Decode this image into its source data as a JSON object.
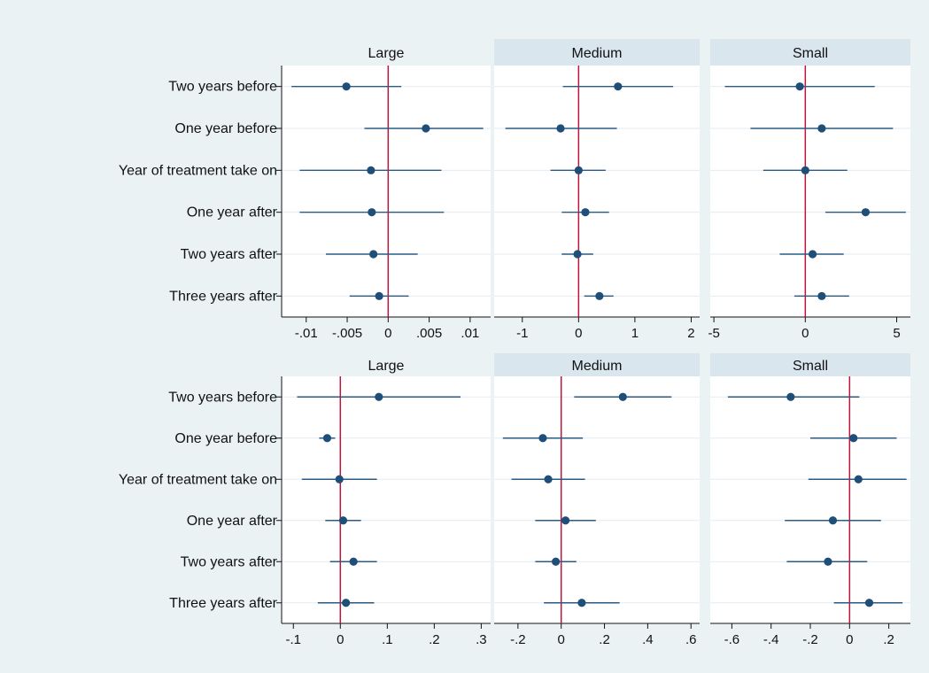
{
  "chart_data": {
    "type": "coefficient_plot",
    "categories": [
      "Two years before",
      "One year before",
      "Year of treatment take on",
      "One year after",
      "Two years after",
      "Three years after"
    ],
    "colors": {
      "figure_background": "#eaf2f3",
      "panel_background": "#ffffff",
      "strip_background": "#d9e6ee",
      "marker": "#1f4e79",
      "ci_line": "#2a5a86",
      "reference_line": "#c0143c",
      "grid": "#e4ebf0"
    },
    "reference_x": 0,
    "grid": true,
    "rows": [
      {
        "panels": [
          {
            "title": "Large",
            "strip_shaded": false,
            "xlim": [
              -0.013,
              0.0125
            ],
            "ticks": [
              -0.01,
              -0.005,
              0,
              0.005,
              0.01
            ],
            "tick_labels": [
              "-.01",
              "-.005",
              "0",
              ".005",
              ".01"
            ],
            "estimates": [
              -0.0051,
              0.0046,
              -0.0021,
              -0.002,
              -0.0018,
              -0.0011
            ],
            "ci_low": [
              -0.0118,
              -0.0029,
              -0.0108,
              -0.0108,
              -0.0076,
              -0.0047
            ],
            "ci_high": [
              0.0016,
              0.0116,
              0.0065,
              0.0068,
              0.0036,
              0.0025
            ]
          },
          {
            "title": "Medium",
            "strip_shaded": true,
            "xlim": [
              -1.5,
              2.15
            ],
            "ticks": [
              -1,
              0,
              1,
              2
            ],
            "tick_labels": [
              "-1",
              "0",
              "1",
              "2"
            ],
            "estimates": [
              0.7,
              -0.32,
              0.0,
              0.12,
              -0.02,
              0.37
            ],
            "ci_low": [
              -0.28,
              -1.3,
              -0.5,
              -0.3,
              -0.3,
              0.1
            ],
            "ci_high": [
              1.68,
              0.68,
              0.48,
              0.54,
              0.26,
              0.62
            ]
          },
          {
            "title": "Small",
            "strip_shaded": true,
            "xlim": [
              -5.2,
              5.75
            ],
            "ticks": [
              -5,
              0,
              5
            ],
            "tick_labels": [
              "-5",
              "0",
              "5"
            ],
            "estimates": [
              -0.3,
              0.9,
              0.0,
              3.3,
              0.4,
              0.9
            ],
            "ci_low": [
              -4.4,
              -3.0,
              -2.3,
              1.1,
              -1.4,
              -0.6
            ],
            "ci_high": [
              3.8,
              4.8,
              2.3,
              5.5,
              2.1,
              2.4
            ]
          }
        ]
      },
      {
        "panels": [
          {
            "title": "Large",
            "strip_shaded": false,
            "xlim": [
              -0.125,
              0.32
            ],
            "ticks": [
              -0.1,
              0,
              0.1,
              0.2,
              0.3
            ],
            "tick_labels": [
              "-.1",
              "0",
              ".1",
              ".2",
              ".3"
            ],
            "estimates": [
              0.082,
              -0.028,
              -0.002,
              0.006,
              0.028,
              0.012
            ],
            "ci_low": [
              -0.092,
              -0.045,
              -0.082,
              -0.032,
              -0.022,
              -0.048
            ],
            "ci_high": [
              0.256,
              -0.011,
              0.078,
              0.044,
              0.078,
              0.072
            ]
          },
          {
            "title": "Medium",
            "strip_shaded": true,
            "xlim": [
              -0.31,
              0.64
            ],
            "ticks": [
              -0.2,
              0,
              0.2,
              0.4,
              0.6
            ],
            "tick_labels": [
              "-.2",
              "0",
              ".2",
              ".4",
              ".6"
            ],
            "estimates": [
              0.285,
              -0.085,
              -0.06,
              0.02,
              -0.025,
              0.095
            ],
            "ci_low": [
              0.06,
              -0.27,
              -0.23,
              -0.12,
              -0.12,
              -0.08
            ],
            "ci_high": [
              0.51,
              0.1,
              0.11,
              0.16,
              0.07,
              0.27
            ]
          },
          {
            "title": "Small",
            "strip_shaded": true,
            "xlim": [
              -0.71,
              0.31
            ],
            "ticks": [
              -0.6,
              -0.4,
              -0.2,
              0,
              0.2
            ],
            "tick_labels": [
              "-.6",
              "-.4",
              "-.2",
              "0",
              ".2"
            ],
            "estimates": [
              -0.3,
              0.02,
              0.045,
              -0.085,
              -0.11,
              0.1
            ],
            "ci_low": [
              -0.62,
              -0.2,
              -0.21,
              -0.33,
              -0.32,
              -0.08
            ],
            "ci_high": [
              0.05,
              0.24,
              0.29,
              0.16,
              0.09,
              0.27
            ]
          }
        ]
      }
    ]
  }
}
